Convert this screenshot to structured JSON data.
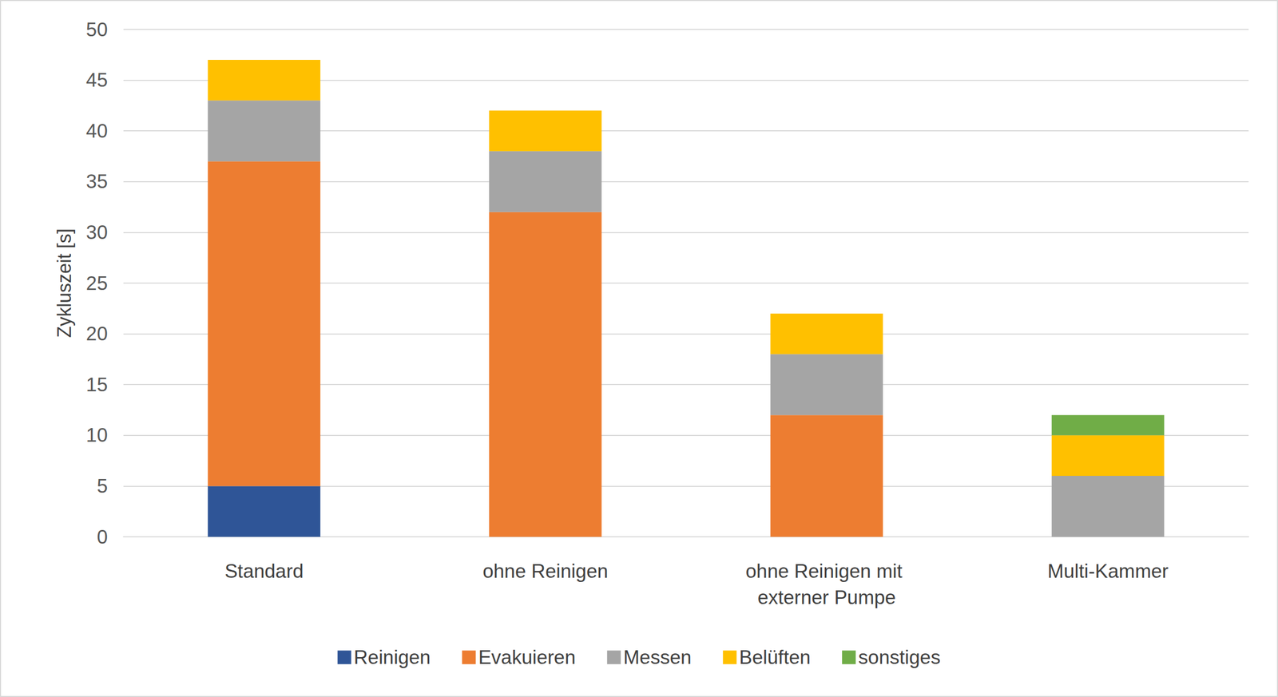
{
  "chart_data": {
    "type": "bar",
    "stacked": true,
    "ylabel": "Zykluszeit [s]",
    "categories": [
      "Standard",
      "ohne Reinigen",
      "ohne Reinigen mit externer Pumpe",
      "Multi-Kammer"
    ],
    "series": [
      {
        "name": "Reinigen",
        "color": "#2f5597",
        "values": [
          5,
          0,
          0,
          0
        ]
      },
      {
        "name": "Evakuieren",
        "color": "#ed7d31",
        "values": [
          32,
          32,
          12,
          0
        ]
      },
      {
        "name": "Messen",
        "color": "#a5a5a5",
        "values": [
          6,
          6,
          6,
          6
        ]
      },
      {
        "name": "Belüften",
        "color": "#ffc000",
        "values": [
          4,
          4,
          4,
          4
        ]
      },
      {
        "name": "sonstiges",
        "color": "#70ad47",
        "values": [
          0,
          0,
          0,
          2
        ]
      }
    ],
    "ylim": [
      0,
      50
    ],
    "yticks": [
      0,
      5,
      10,
      15,
      20,
      25,
      30,
      35,
      40,
      45,
      50
    ],
    "grid": true,
    "legend": "bottom"
  }
}
